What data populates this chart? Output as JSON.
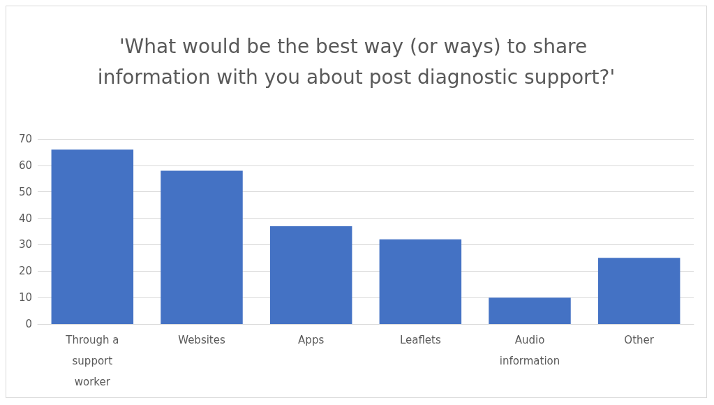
{
  "chart_data": {
    "type": "bar",
    "title": "'What would be the best way (or ways) to share information with you about post diagnostic support?'",
    "categories": [
      "Through a support worker",
      "Websites",
      "Apps",
      "Leaflets",
      "Audio information",
      "Other"
    ],
    "values": [
      66,
      58,
      37,
      32,
      10,
      25
    ],
    "color": "#4472c4",
    "ylim": [
      0,
      70
    ],
    "yticks": [
      0,
      10,
      20,
      30,
      40,
      50,
      60,
      70
    ],
    "grid": "y"
  }
}
